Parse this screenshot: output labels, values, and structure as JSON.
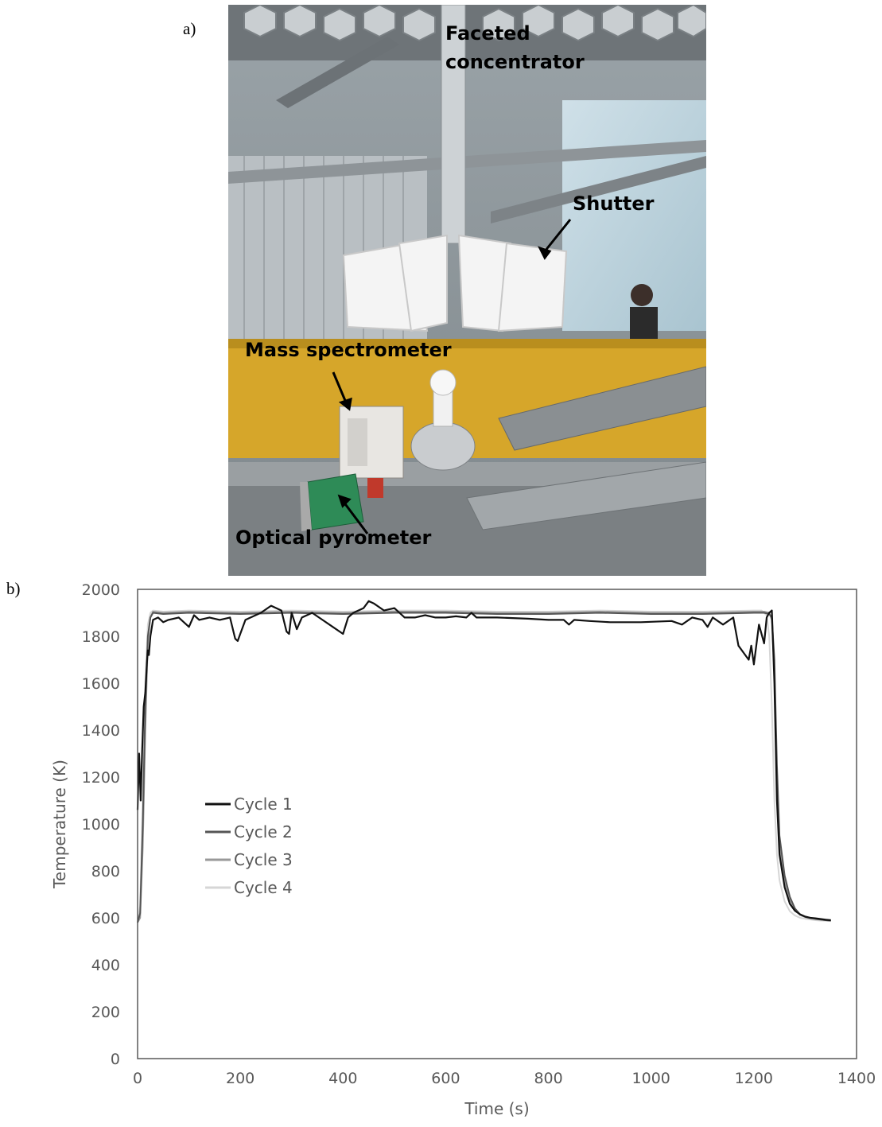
{
  "figure": {
    "panel_a_label": "a)",
    "panel_b_label": "b)",
    "photo": {
      "callouts": {
        "concentrator_line1": "Faceted",
        "concentrator_line2": "concentrator",
        "shutter": "Shutter",
        "mass_spectrometer": "Mass spectrometer",
        "optical_pyrometer": "Optical pyrometer"
      }
    }
  },
  "chart_data": {
    "type": "line",
    "xlabel": "Time (s)",
    "ylabel": "Temperature (K)",
    "xlim": [
      0,
      1400
    ],
    "ylim": [
      0,
      2000
    ],
    "xticks": [
      0,
      200,
      400,
      600,
      800,
      1000,
      1200,
      1400
    ],
    "yticks": [
      0,
      200,
      400,
      600,
      800,
      1000,
      1200,
      1400,
      1600,
      1800,
      2000
    ],
    "grid": false,
    "legend_position": "center-left",
    "series": [
      {
        "name": "Cycle 1",
        "color": "#111111",
        "x": [
          0,
          3,
          6,
          9,
          12,
          15,
          18,
          20,
          22,
          25,
          30,
          40,
          50,
          60,
          80,
          100,
          110,
          120,
          140,
          160,
          180,
          190,
          195,
          200,
          210,
          220,
          240,
          260,
          280,
          290,
          295,
          300,
          310,
          320,
          340,
          360,
          380,
          400,
          410,
          420,
          440,
          450,
          460,
          480,
          500,
          510,
          520,
          540,
          560,
          580,
          600,
          620,
          640,
          650,
          660,
          700,
          760,
          800,
          830,
          840,
          850,
          880,
          920,
          980,
          1040,
          1060,
          1080,
          1100,
          1110,
          1120,
          1140,
          1160,
          1170,
          1180,
          1190,
          1195,
          1200,
          1210,
          1220,
          1225,
          1230,
          1235,
          1240,
          1245,
          1250,
          1260,
          1270,
          1280,
          1290,
          1300,
          1310,
          1320,
          1330,
          1340,
          1350
        ],
        "y": [
          1060,
          1300,
          1100,
          1320,
          1500,
          1560,
          1680,
          1740,
          1720,
          1800,
          1870,
          1880,
          1860,
          1870,
          1880,
          1840,
          1890,
          1870,
          1880,
          1870,
          1880,
          1790,
          1780,
          1810,
          1870,
          1880,
          1900,
          1930,
          1910,
          1820,
          1810,
          1900,
          1830,
          1880,
          1900,
          1870,
          1840,
          1810,
          1880,
          1900,
          1920,
          1950,
          1940,
          1910,
          1920,
          1900,
          1880,
          1880,
          1890,
          1880,
          1880,
          1885,
          1880,
          1900,
          1880,
          1880,
          1875,
          1870,
          1870,
          1850,
          1870,
          1865,
          1860,
          1860,
          1865,
          1850,
          1880,
          1870,
          1840,
          1880,
          1850,
          1880,
          1760,
          1730,
          1700,
          1760,
          1680,
          1850,
          1770,
          1880,
          1900,
          1910,
          1600,
          1100,
          870,
          730,
          660,
          630,
          615,
          605,
          600,
          598,
          595,
          592,
          590
        ]
      },
      {
        "name": "Cycle 2",
        "color": "#555555",
        "x": [
          0,
          5,
          10,
          15,
          20,
          25,
          30,
          50,
          100,
          200,
          300,
          400,
          500,
          600,
          700,
          800,
          900,
          1000,
          1100,
          1200,
          1220,
          1230,
          1235,
          1240,
          1245,
          1250,
          1260,
          1270,
          1280,
          1290,
          1300,
          1310,
          1320,
          1330,
          1340,
          1350
        ],
        "y": [
          580,
          620,
          1000,
          1500,
          1800,
          1880,
          1900,
          1895,
          1900,
          1895,
          1900,
          1895,
          1900,
          1900,
          1895,
          1895,
          1900,
          1895,
          1895,
          1900,
          1900,
          1895,
          1880,
          1700,
          1250,
          950,
          780,
          690,
          640,
          615,
          605,
          600,
          596,
          593,
          590,
          588
        ]
      },
      {
        "name": "Cycle 3",
        "color": "#999999",
        "x": [
          0,
          5,
          10,
          15,
          20,
          25,
          30,
          50,
          100,
          200,
          300,
          400,
          500,
          600,
          700,
          800,
          900,
          1000,
          1100,
          1200,
          1220,
          1230,
          1235,
          1240,
          1245,
          1250,
          1260,
          1270,
          1280,
          1290,
          1300,
          1310,
          1320,
          1330,
          1340,
          1350
        ],
        "y": [
          580,
          600,
          900,
          1400,
          1780,
          1880,
          1905,
          1900,
          1905,
          1900,
          1905,
          1900,
          1905,
          1905,
          1900,
          1900,
          1905,
          1900,
          1900,
          1905,
          1905,
          1900,
          1870,
          1650,
          1180,
          900,
          760,
          680,
          635,
          612,
          603,
          598,
          595,
          592,
          590,
          588
        ]
      },
      {
        "name": "Cycle 4",
        "color": "#d6d6d6",
        "x": [
          0,
          5,
          10,
          15,
          20,
          25,
          30,
          50,
          100,
          200,
          300,
          400,
          500,
          600,
          700,
          800,
          900,
          1000,
          1100,
          1200,
          1215,
          1225,
          1230,
          1235,
          1240,
          1245,
          1250,
          1260,
          1270,
          1280,
          1290,
          1300,
          1310,
          1320,
          1330,
          1340,
          1350
        ],
        "y": [
          580,
          650,
          1100,
          1600,
          1850,
          1900,
          1910,
          1905,
          1910,
          1905,
          1910,
          1905,
          1910,
          1910,
          1905,
          1905,
          1910,
          1905,
          1905,
          1910,
          1910,
          1890,
          1800,
          1500,
          1100,
          870,
          760,
          670,
          628,
          610,
          600,
          596,
          593,
          590,
          588,
          587,
          586
        ]
      }
    ]
  }
}
